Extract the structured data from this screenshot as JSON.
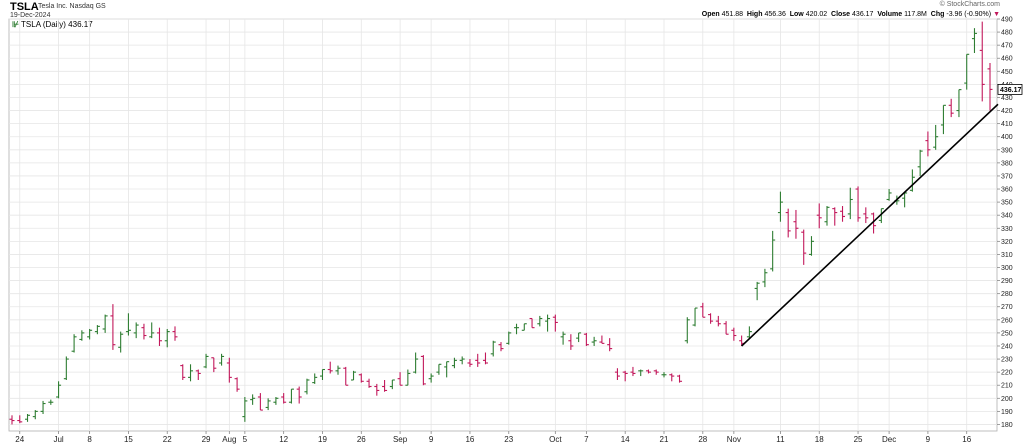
{
  "header": {
    "symbol": "TSLA",
    "company": "Tesla Inc.  Nasdaq GS",
    "date": "19-Dec-2024",
    "brand": "© StockCharts.com",
    "legend_label": "TSLA (Daily) 436.17",
    "open_label": "Open",
    "open": "451.88",
    "high_label": "High",
    "high": "456.36",
    "low_label": "Low",
    "low": "420.02",
    "close_label": "Close",
    "close": "436.17",
    "volume_label": "Volume",
    "volume": "117.8M",
    "chg_label": "Chg",
    "chg": "-3.96 (-0.90%)",
    "chg_arrow": "▼"
  },
  "colors": {
    "up": "#2e7d32",
    "down": "#c2185b",
    "grid": "#e6e6e6",
    "trendline": "#000000"
  },
  "chart_data": {
    "type": "ohlc",
    "ylim": [
      175,
      490
    ],
    "y_ticks": [
      180,
      190,
      200,
      210,
      220,
      230,
      240,
      250,
      260,
      270,
      280,
      290,
      300,
      310,
      320,
      330,
      340,
      350,
      360,
      370,
      380,
      390,
      400,
      410,
      420,
      430,
      440,
      450,
      460,
      470,
      480,
      490
    ],
    "last_price_label": "436.17",
    "x_labels": [
      "24",
      "Jul",
      "8",
      "15",
      "22",
      "29",
      "Aug",
      "5",
      "12",
      "19",
      "26",
      "Sep",
      "9",
      "16",
      "23",
      "Oct",
      "7",
      "14",
      "21",
      "28",
      "Nov",
      "11",
      "18",
      "25",
      "Dec",
      "9",
      "16"
    ],
    "bars": [
      {
        "date": "2024-06-21",
        "o": 184,
        "h": 187,
        "l": 180,
        "c": 183
      },
      {
        "date": "2024-06-24",
        "o": 183,
        "h": 187,
        "l": 181,
        "c": 182
      },
      {
        "date": "2024-06-25",
        "o": 184,
        "h": 188,
        "l": 182,
        "c": 187
      },
      {
        "date": "2024-06-26",
        "o": 186,
        "h": 191,
        "l": 184,
        "c": 190
      },
      {
        "date": "2024-06-27",
        "o": 190,
        "h": 198,
        "l": 188,
        "c": 196
      },
      {
        "date": "2024-06-28",
        "o": 197,
        "h": 199,
        "l": 195,
        "c": 197
      },
      {
        "date": "2024-07-01",
        "o": 201,
        "h": 213,
        "l": 200,
        "c": 210
      },
      {
        "date": "2024-07-02",
        "o": 215,
        "h": 232,
        "l": 214,
        "c": 230
      },
      {
        "date": "2024-07-03",
        "o": 236,
        "h": 249,
        "l": 235,
        "c": 247
      },
      {
        "date": "2024-07-05",
        "o": 245,
        "h": 252,
        "l": 244,
        "c": 250
      },
      {
        "date": "2024-07-08",
        "o": 247,
        "h": 253,
        "l": 245,
        "c": 252
      },
      {
        "date": "2024-07-09",
        "o": 251,
        "h": 256,
        "l": 249,
        "c": 255
      },
      {
        "date": "2024-07-10",
        "o": 253,
        "h": 264,
        "l": 250,
        "c": 263
      },
      {
        "date": "2024-07-11",
        "o": 263,
        "h": 272,
        "l": 237,
        "c": 241
      },
      {
        "date": "2024-07-12",
        "o": 239,
        "h": 251,
        "l": 235,
        "c": 249
      },
      {
        "date": "2024-07-15",
        "o": 251,
        "h": 265,
        "l": 248,
        "c": 252
      },
      {
        "date": "2024-07-16",
        "o": 250,
        "h": 258,
        "l": 246,
        "c": 256
      },
      {
        "date": "2024-07-17",
        "o": 254,
        "h": 257,
        "l": 245,
        "c": 248
      },
      {
        "date": "2024-07-18",
        "o": 247,
        "h": 258,
        "l": 246,
        "c": 250
      },
      {
        "date": "2024-07-19",
        "o": 250,
        "h": 254,
        "l": 240,
        "c": 244
      },
      {
        "date": "2024-07-22",
        "o": 244,
        "h": 253,
        "l": 239,
        "c": 251
      },
      {
        "date": "2024-07-23",
        "o": 251,
        "h": 255,
        "l": 244,
        "c": 247
      },
      {
        "date": "2024-07-24",
        "o": 225,
        "h": 226,
        "l": 214,
        "c": 216
      },
      {
        "date": "2024-07-25",
        "o": 216,
        "h": 226,
        "l": 213,
        "c": 221
      },
      {
        "date": "2024-07-26",
        "o": 221,
        "h": 222,
        "l": 214,
        "c": 219
      },
      {
        "date": "2024-07-29",
        "o": 224,
        "h": 234,
        "l": 223,
        "c": 232
      },
      {
        "date": "2024-07-30",
        "o": 231,
        "h": 231,
        "l": 220,
        "c": 223
      },
      {
        "date": "2024-07-31",
        "o": 227,
        "h": 234,
        "l": 225,
        "c": 232
      },
      {
        "date": "2024-08-01",
        "o": 227,
        "h": 231,
        "l": 212,
        "c": 216
      },
      {
        "date": "2024-08-02",
        "o": 215,
        "h": 216,
        "l": 205,
        "c": 207
      },
      {
        "date": "2024-08-05",
        "o": 186,
        "h": 201,
        "l": 182,
        "c": 198
      },
      {
        "date": "2024-08-06",
        "o": 199,
        "h": 203,
        "l": 195,
        "c": 200
      },
      {
        "date": "2024-08-07",
        "o": 201,
        "h": 204,
        "l": 191,
        "c": 191
      },
      {
        "date": "2024-08-08",
        "o": 193,
        "h": 200,
        "l": 191,
        "c": 198
      },
      {
        "date": "2024-08-09",
        "o": 197,
        "h": 201,
        "l": 195,
        "c": 200
      },
      {
        "date": "2024-08-12",
        "o": 201,
        "h": 204,
        "l": 196,
        "c": 197
      },
      {
        "date": "2024-08-13",
        "o": 197,
        "h": 207,
        "l": 196,
        "c": 207
      },
      {
        "date": "2024-08-14",
        "o": 207,
        "h": 209,
        "l": 196,
        "c": 201
      },
      {
        "date": "2024-08-15",
        "o": 205,
        "h": 215,
        "l": 203,
        "c": 214
      },
      {
        "date": "2024-08-16",
        "o": 212,
        "h": 219,
        "l": 211,
        "c": 216
      },
      {
        "date": "2024-08-19",
        "o": 217,
        "h": 222,
        "l": 214,
        "c": 222
      },
      {
        "date": "2024-08-20",
        "o": 222,
        "h": 228,
        "l": 219,
        "c": 221
      },
      {
        "date": "2024-08-21",
        "o": 221,
        "h": 225,
        "l": 218,
        "c": 223
      },
      {
        "date": "2024-08-22",
        "o": 223,
        "h": 224,
        "l": 210,
        "c": 210
      },
      {
        "date": "2024-08-23",
        "o": 214,
        "h": 221,
        "l": 214,
        "c": 220
      },
      {
        "date": "2024-08-26",
        "o": 218,
        "h": 219,
        "l": 212,
        "c": 213
      },
      {
        "date": "2024-08-27",
        "o": 213,
        "h": 215,
        "l": 208,
        "c": 209
      },
      {
        "date": "2024-08-28",
        "o": 209,
        "h": 211,
        "l": 202,
        "c": 206
      },
      {
        "date": "2024-08-29",
        "o": 209,
        "h": 214,
        "l": 205,
        "c": 206
      },
      {
        "date": "2024-08-30",
        "o": 209,
        "h": 214,
        "l": 207,
        "c": 214
      },
      {
        "date": "2024-09-03",
        "o": 215,
        "h": 220,
        "l": 210,
        "c": 210
      },
      {
        "date": "2024-09-04",
        "o": 210,
        "h": 222,
        "l": 210,
        "c": 219
      },
      {
        "date": "2024-09-05",
        "o": 220,
        "h": 235,
        "l": 219,
        "c": 230
      },
      {
        "date": "2024-09-06",
        "o": 232,
        "h": 233,
        "l": 210,
        "c": 211
      },
      {
        "date": "2024-09-09",
        "o": 215,
        "h": 219,
        "l": 212,
        "c": 217
      },
      {
        "date": "2024-09-10",
        "o": 220,
        "h": 226,
        "l": 218,
        "c": 226
      },
      {
        "date": "2024-09-11",
        "o": 224,
        "h": 228,
        "l": 216,
        "c": 228
      },
      {
        "date": "2024-09-12",
        "o": 225,
        "h": 231,
        "l": 223,
        "c": 229
      },
      {
        "date": "2024-09-13",
        "o": 229,
        "h": 232,
        "l": 226,
        "c": 230
      },
      {
        "date": "2024-09-16",
        "o": 227,
        "h": 230,
        "l": 224,
        "c": 226
      },
      {
        "date": "2024-09-17",
        "o": 229,
        "h": 234,
        "l": 224,
        "c": 227
      },
      {
        "date": "2024-09-18",
        "o": 229,
        "h": 235,
        "l": 226,
        "c": 227
      },
      {
        "date": "2024-09-19",
        "o": 234,
        "h": 244,
        "l": 232,
        "c": 243
      },
      {
        "date": "2024-09-20",
        "o": 241,
        "h": 243,
        "l": 236,
        "c": 238
      },
      {
        "date": "2024-09-23",
        "o": 242,
        "h": 251,
        "l": 241,
        "c": 250
      },
      {
        "date": "2024-09-24",
        "o": 254,
        "h": 257,
        "l": 249,
        "c": 254
      },
      {
        "date": "2024-09-25",
        "o": 252,
        "h": 257,
        "l": 252,
        "c": 257
      },
      {
        "date": "2024-09-26",
        "o": 261,
        "h": 261,
        "l": 254,
        "c": 254
      },
      {
        "date": "2024-09-27",
        "o": 257,
        "h": 263,
        "l": 255,
        "c": 261
      },
      {
        "date": "2024-09-30",
        "o": 259,
        "h": 264,
        "l": 251,
        "c": 261
      },
      {
        "date": "2024-10-01",
        "o": 262,
        "h": 264,
        "l": 251,
        "c": 258
      },
      {
        "date": "2024-10-02",
        "o": 247,
        "h": 251,
        "l": 241,
        "c": 249
      },
      {
        "date": "2024-10-03",
        "o": 244,
        "h": 249,
        "l": 237,
        "c": 240
      },
      {
        "date": "2024-10-04",
        "o": 246,
        "h": 250,
        "l": 243,
        "c": 250
      },
      {
        "date": "2024-10-07",
        "o": 249,
        "h": 250,
        "l": 240,
        "c": 241
      },
      {
        "date": "2024-10-08",
        "o": 243,
        "h": 247,
        "l": 240,
        "c": 244
      },
      {
        "date": "2024-10-09",
        "o": 243,
        "h": 248,
        "l": 242,
        "c": 242
      },
      {
        "date": "2024-10-10",
        "o": 241,
        "h": 246,
        "l": 236,
        "c": 238
      },
      {
        "date": "2024-10-11",
        "o": 220,
        "h": 223,
        "l": 214,
        "c": 217
      },
      {
        "date": "2024-10-14",
        "o": 220,
        "h": 221,
        "l": 213,
        "c": 219
      },
      {
        "date": "2024-10-15",
        "o": 220,
        "h": 224,
        "l": 217,
        "c": 219
      },
      {
        "date": "2024-10-16",
        "o": 221,
        "h": 222,
        "l": 217,
        "c": 221
      },
      {
        "date": "2024-10-17",
        "o": 221,
        "h": 222,
        "l": 219,
        "c": 220
      },
      {
        "date": "2024-10-18",
        "o": 221,
        "h": 222,
        "l": 218,
        "c": 220
      },
      {
        "date": "2024-10-21",
        "o": 218,
        "h": 220,
        "l": 216,
        "c": 218
      },
      {
        "date": "2024-10-22",
        "o": 218,
        "h": 219,
        "l": 213,
        "c": 217
      },
      {
        "date": "2024-10-23",
        "o": 217,
        "h": 218,
        "l": 212,
        "c": 213
      },
      {
        "date": "2024-10-24",
        "o": 244,
        "h": 262,
        "l": 242,
        "c": 260
      },
      {
        "date": "2024-10-25",
        "o": 256,
        "h": 269,
        "l": 255,
        "c": 269
      },
      {
        "date": "2024-10-28",
        "o": 270,
        "h": 273,
        "l": 262,
        "c": 262
      },
      {
        "date": "2024-10-29",
        "o": 264,
        "h": 265,
        "l": 257,
        "c": 259
      },
      {
        "date": "2024-10-30",
        "o": 259,
        "h": 263,
        "l": 255,
        "c": 257
      },
      {
        "date": "2024-10-31",
        "o": 257,
        "h": 259,
        "l": 249,
        "c": 249
      },
      {
        "date": "2024-11-01",
        "o": 252,
        "h": 254,
        "l": 244,
        "c": 248
      },
      {
        "date": "2024-11-04",
        "o": 244,
        "h": 248,
        "l": 240,
        "c": 242
      },
      {
        "date": "2024-11-05",
        "o": 247,
        "h": 255,
        "l": 246,
        "c": 251
      },
      {
        "date": "2024-11-06",
        "o": 284,
        "h": 289,
        "l": 275,
        "c": 288
      },
      {
        "date": "2024-11-07",
        "o": 289,
        "h": 299,
        "l": 285,
        "c": 296
      },
      {
        "date": "2024-11-08",
        "o": 299,
        "h": 328,
        "l": 297,
        "c": 321
      },
      {
        "date": "2024-11-11",
        "o": 342,
        "h": 358,
        "l": 335,
        "c": 350
      },
      {
        "date": "2024-11-12",
        "o": 342,
        "h": 345,
        "l": 323,
        "c": 328
      },
      {
        "date": "2024-11-13",
        "o": 335,
        "h": 344,
        "l": 322,
        "c": 330
      },
      {
        "date": "2024-11-14",
        "o": 327,
        "h": 329,
        "l": 302,
        "c": 311
      },
      {
        "date": "2024-11-15",
        "o": 310,
        "h": 324,
        "l": 309,
        "c": 320
      },
      {
        "date": "2024-11-18",
        "o": 340,
        "h": 349,
        "l": 330,
        "c": 338
      },
      {
        "date": "2024-11-19",
        "o": 335,
        "h": 347,
        "l": 332,
        "c": 346
      },
      {
        "date": "2024-11-20",
        "o": 345,
        "h": 346,
        "l": 332,
        "c": 342
      },
      {
        "date": "2024-11-21",
        "o": 343,
        "h": 347,
        "l": 335,
        "c": 339
      },
      {
        "date": "2024-11-22",
        "o": 341,
        "h": 361,
        "l": 337,
        "c": 352
      },
      {
        "date": "2024-11-25",
        "o": 360,
        "h": 362,
        "l": 335,
        "c": 338
      },
      {
        "date": "2024-11-26",
        "o": 341,
        "h": 346,
        "l": 334,
        "c": 338
      },
      {
        "date": "2024-11-27",
        "o": 341,
        "h": 342,
        "l": 326,
        "c": 332
      },
      {
        "date": "2024-11-29",
        "o": 336,
        "h": 345,
        "l": 334,
        "c": 345
      },
      {
        "date": "2024-12-02",
        "o": 352,
        "h": 360,
        "l": 351,
        "c": 357
      },
      {
        "date": "2024-12-03",
        "o": 351,
        "h": 355,
        "l": 348,
        "c": 351
      },
      {
        "date": "2024-12-04",
        "o": 353,
        "h": 358,
        "l": 346,
        "c": 357
      },
      {
        "date": "2024-12-05",
        "o": 359,
        "h": 375,
        "l": 358,
        "c": 369
      },
      {
        "date": "2024-12-06",
        "o": 377,
        "h": 390,
        "l": 370,
        "c": 389
      },
      {
        "date": "2024-12-09",
        "o": 397,
        "h": 404,
        "l": 385,
        "c": 390
      },
      {
        "date": "2024-12-10",
        "o": 392,
        "h": 409,
        "l": 390,
        "c": 400
      },
      {
        "date": "2024-12-11",
        "o": 409,
        "h": 424,
        "l": 402,
        "c": 424
      },
      {
        "date": "2024-12-12",
        "o": 424,
        "h": 429,
        "l": 415,
        "c": 418
      },
      {
        "date": "2024-12-13",
        "o": 420,
        "h": 436,
        "l": 415,
        "c": 436
      },
      {
        "date": "2024-12-16",
        "o": 441,
        "h": 463,
        "l": 436,
        "c": 463
      },
      {
        "date": "2024-12-17",
        "o": 475,
        "h": 483,
        "l": 464,
        "c": 479
      },
      {
        "date": "2024-12-18",
        "o": 466,
        "h": 488,
        "l": 427,
        "c": 440
      },
      {
        "date": "2024-12-19",
        "o": 451.88,
        "h": 456.36,
        "l": 420.02,
        "c": 436.17
      }
    ],
    "trendline": [
      {
        "date": "2024-11-04",
        "value": 240
      },
      {
        "date": "2024-12-19",
        "value": 421
      }
    ]
  }
}
